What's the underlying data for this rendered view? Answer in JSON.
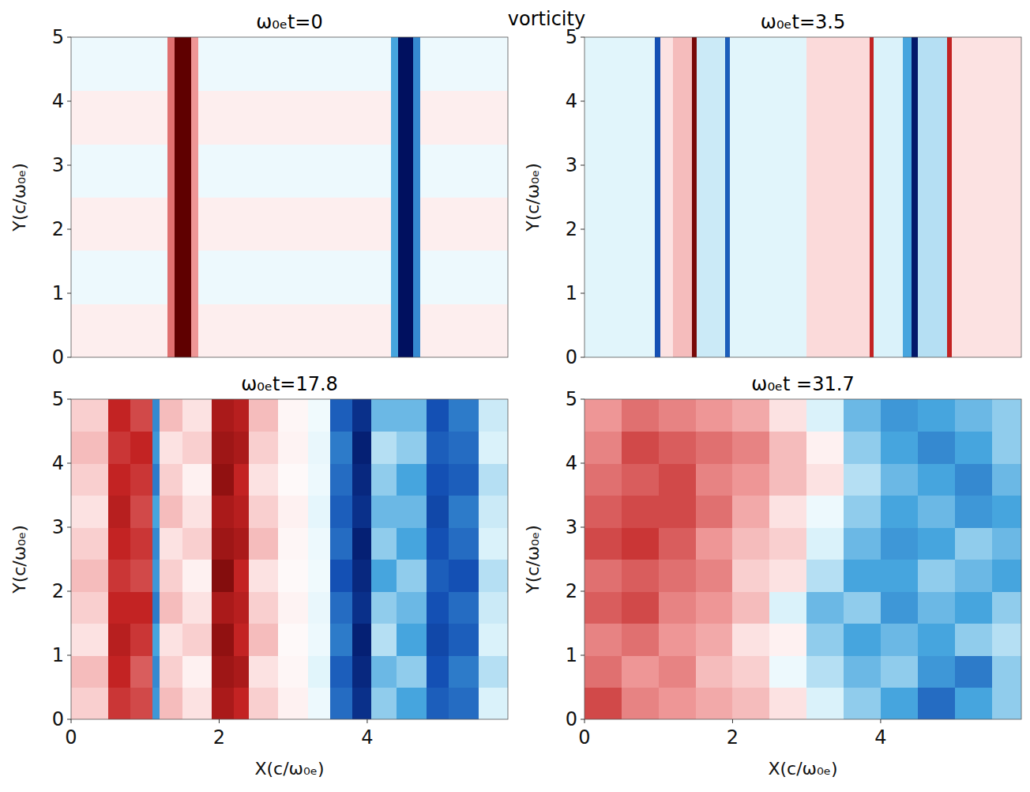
{
  "title": "vorticity",
  "chart_data": [
    {
      "type": "heatmap",
      "title": "ω₀ₑt=0",
      "y_label": "Y(c/ω₀ₑ)",
      "tick_labels": "y",
      "xlim": [
        0,
        5.9
      ],
      "ylim": [
        0,
        5
      ],
      "yticks": [
        0,
        1,
        2,
        3,
        4,
        5
      ],
      "zlim": [
        -1,
        1
      ],
      "x_edges": [
        0,
        1.3,
        1.4,
        1.62,
        1.72,
        4.32,
        4.42,
        4.62,
        4.72,
        5.9
      ],
      "y_edges": [
        0,
        0.83,
        1.67,
        2.5,
        3.33,
        4.17,
        5
      ],
      "cells": [
        [
          0.06,
          0.4,
          1,
          0.3,
          0.06,
          -0.3,
          -1,
          -0.4,
          0.06
        ],
        [
          -0.05,
          0.4,
          1,
          0.3,
          -0.05,
          -0.3,
          -1,
          -0.4,
          -0.05
        ],
        [
          0.06,
          0.4,
          1,
          0.3,
          0.06,
          -0.3,
          -1,
          -0.4,
          0.06
        ],
        [
          -0.05,
          0.4,
          1,
          0.3,
          -0.05,
          -0.3,
          -1,
          -0.4,
          -0.05
        ],
        [
          0.06,
          0.4,
          1,
          0.3,
          0.06,
          -0.3,
          -1,
          -0.4,
          0.06
        ],
        [
          -0.05,
          0.4,
          1,
          0.3,
          -0.05,
          -0.3,
          -1,
          -0.4,
          -0.05
        ]
      ]
    },
    {
      "type": "heatmap",
      "title": "ω₀ₑt=3.5",
      "y_label": "Y(c/ω₀ₑ)",
      "tick_labels": "y",
      "xlim": [
        0,
        5.9
      ],
      "ylim": [
        0,
        5
      ],
      "yticks": [
        0,
        1,
        2,
        3,
        4,
        5
      ],
      "zlim": [
        -1,
        1
      ],
      "x_edges": [
        0,
        0.95,
        1.02,
        1.2,
        1.45,
        1.52,
        1.9,
        1.96,
        3.0,
        3.85,
        3.9,
        4.3,
        4.42,
        4.5,
        4.9,
        4.96,
        5.9
      ],
      "y_edges": [
        0,
        5
      ],
      "cells": [
        [
          -0.08,
          -0.6,
          0.1,
          0.2,
          0.9,
          -0.12,
          -0.55,
          -0.08,
          0.12,
          0.6,
          -0.1,
          -0.3,
          -0.95,
          -0.15,
          0.6,
          0.1
        ]
      ]
    },
    {
      "type": "heatmap",
      "title": "ω₀ₑt=17.8",
      "x_label": "X(c/ω₀ₑ)",
      "y_label": "Y(c/ω₀ₑ)",
      "xlim": [
        0,
        5.9
      ],
      "ylim": [
        0,
        5
      ],
      "xticks": [
        0,
        2,
        4
      ],
      "yticks": [
        0,
        1,
        2,
        3,
        4,
        5
      ],
      "zlim": [
        -1,
        1
      ],
      "x_edges": [
        0,
        0.5,
        0.8,
        1.1,
        1.2,
        1.5,
        1.9,
        2.2,
        2.4,
        2.8,
        3.2,
        3.5,
        3.8,
        4.05,
        4.4,
        4.8,
        5.1,
        5.5,
        5.9
      ],
      "y_edges": [
        0,
        0.5,
        1,
        1.5,
        2,
        2.5,
        3,
        3.5,
        4,
        4.5,
        5
      ],
      "cells": [
        [
          0.15,
          0.55,
          0.5,
          -0.35,
          0.2,
          0.1,
          0.7,
          0.6,
          0.15,
          0.05,
          -0.05,
          -0.5,
          -0.8,
          -0.2,
          -0.3,
          -0.55,
          -0.5,
          -0.1
        ],
        [
          0.2,
          0.6,
          0.45,
          -0.4,
          0.15,
          0.05,
          0.75,
          0.7,
          0.1,
          0.03,
          -0.08,
          -0.55,
          -0.85,
          -0.25,
          -0.2,
          -0.6,
          -0.45,
          -0.15
        ],
        [
          0.1,
          0.65,
          0.55,
          -0.3,
          0.1,
          0.15,
          0.8,
          0.6,
          0.2,
          0.02,
          -0.05,
          -0.45,
          -0.9,
          -0.15,
          -0.3,
          -0.65,
          -0.55,
          -0.1
        ],
        [
          0.15,
          0.6,
          0.6,
          -0.45,
          0.2,
          0.1,
          0.7,
          0.65,
          0.15,
          0.04,
          -0.06,
          -0.5,
          -0.8,
          -0.2,
          -0.25,
          -0.6,
          -0.5,
          -0.12
        ],
        [
          0.2,
          0.55,
          0.5,
          -0.35,
          0.15,
          0.05,
          0.85,
          0.6,
          0.1,
          0.02,
          -0.04,
          -0.6,
          -0.85,
          -0.3,
          -0.2,
          -0.55,
          -0.6,
          -0.15
        ],
        [
          0.15,
          0.6,
          0.55,
          -0.4,
          0.1,
          0.15,
          0.75,
          0.7,
          0.2,
          0.03,
          -0.05,
          -0.5,
          -0.9,
          -0.2,
          -0.3,
          -0.6,
          -0.5,
          -0.1
        ],
        [
          0.1,
          0.65,
          0.5,
          -0.3,
          0.2,
          0.1,
          0.7,
          0.65,
          0.15,
          0.05,
          -0.07,
          -0.55,
          -0.8,
          -0.25,
          -0.25,
          -0.65,
          -0.45,
          -0.12
        ],
        [
          0.15,
          0.6,
          0.55,
          -0.45,
          0.15,
          0.05,
          0.8,
          0.6,
          0.1,
          0.02,
          -0.05,
          -0.5,
          -0.85,
          -0.2,
          -0.3,
          -0.6,
          -0.55,
          -0.15
        ],
        [
          0.2,
          0.55,
          0.6,
          -0.35,
          0.1,
          0.15,
          0.75,
          0.7,
          0.15,
          0.04,
          -0.06,
          -0.45,
          -0.9,
          -0.15,
          -0.2,
          -0.55,
          -0.5,
          -0.1
        ],
        [
          0.15,
          0.6,
          0.5,
          -0.4,
          0.2,
          0.1,
          0.7,
          0.65,
          0.2,
          0.03,
          -0.04,
          -0.55,
          -0.8,
          -0.25,
          -0.25,
          -0.6,
          -0.45,
          -0.12
        ]
      ]
    },
    {
      "type": "heatmap",
      "title": "ω₀ₑt =31.7",
      "x_label": "X(c/ω₀ₑ)",
      "y_label": "Y(c/ω₀ₑ)",
      "xlim": [
        0,
        5.9
      ],
      "ylim": [
        0,
        5
      ],
      "xticks": [
        0,
        2,
        4
      ],
      "yticks": [
        0,
        1,
        2,
        3,
        4,
        5
      ],
      "zlim": [
        -1,
        1
      ],
      "x_edges": [
        0,
        0.5,
        1,
        1.5,
        2,
        2.5,
        3,
        3.5,
        4,
        4.5,
        5,
        5.5,
        5.9
      ],
      "y_edges": [
        0,
        0.5,
        1,
        1.5,
        2,
        2.5,
        3,
        3.5,
        4,
        4.5,
        5
      ],
      "cells": [
        [
          0.5,
          0.35,
          0.3,
          0.25,
          0.2,
          0.1,
          -0.1,
          -0.2,
          -0.3,
          -0.5,
          -0.3,
          -0.2
        ],
        [
          0.4,
          0.3,
          0.35,
          0.2,
          0.15,
          -0.05,
          -0.15,
          -0.25,
          -0.2,
          -0.35,
          -0.45,
          -0.2
        ],
        [
          0.35,
          0.4,
          0.3,
          0.25,
          0.1,
          0.05,
          -0.2,
          -0.3,
          -0.25,
          -0.3,
          -0.2,
          -0.15
        ],
        [
          0.45,
          0.5,
          0.35,
          0.3,
          0.2,
          -0.1,
          -0.25,
          -0.2,
          -0.35,
          -0.25,
          -0.3,
          -0.2
        ],
        [
          0.4,
          0.45,
          0.4,
          0.35,
          0.15,
          0.1,
          -0.15,
          -0.3,
          -0.3,
          -0.2,
          -0.25,
          -0.3
        ],
        [
          0.5,
          0.55,
          0.45,
          0.3,
          0.2,
          0.15,
          -0.1,
          -0.25,
          -0.35,
          -0.3,
          -0.2,
          -0.25
        ],
        [
          0.45,
          0.5,
          0.5,
          0.4,
          0.25,
          0.1,
          -0.05,
          -0.2,
          -0.3,
          -0.25,
          -0.35,
          -0.3
        ],
        [
          0.4,
          0.45,
          0.5,
          0.35,
          0.3,
          0.2,
          0.1,
          -0.15,
          -0.25,
          -0.3,
          -0.4,
          -0.25
        ],
        [
          0.35,
          0.5,
          0.45,
          0.4,
          0.35,
          0.2,
          0.05,
          -0.2,
          -0.3,
          -0.4,
          -0.3,
          -0.2
        ],
        [
          0.3,
          0.4,
          0.35,
          0.3,
          0.25,
          0.1,
          -0.1,
          -0.25,
          -0.35,
          -0.3,
          -0.25,
          -0.2
        ]
      ]
    }
  ]
}
